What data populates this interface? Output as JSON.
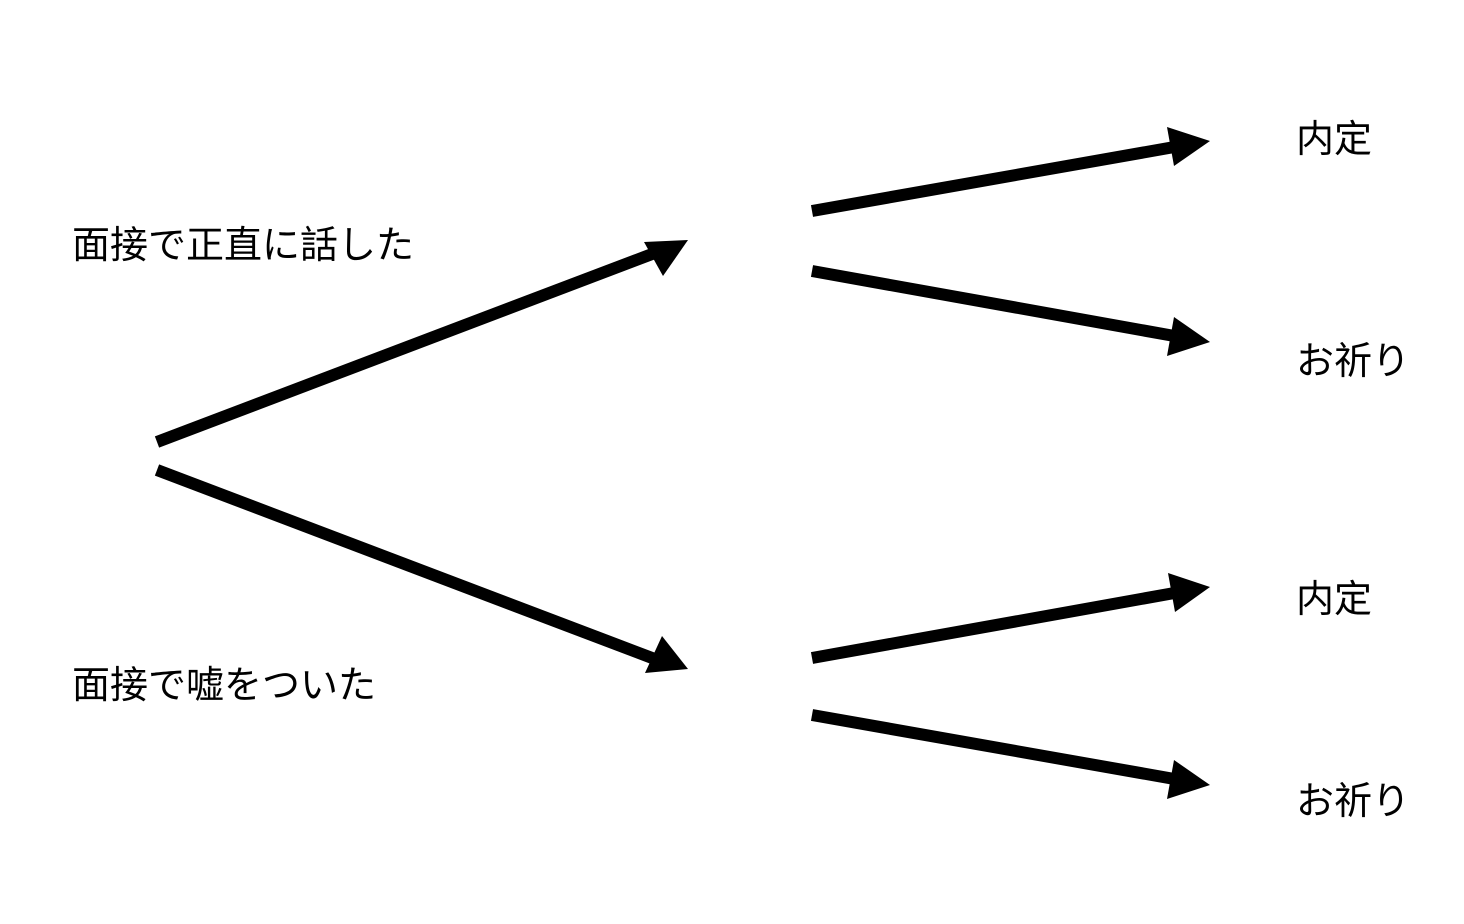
{
  "diagram": {
    "branches": {
      "honest": "面接で正直に話した",
      "lie": "面接で嘘をついた"
    },
    "outcomes": {
      "honest_offer": "内定",
      "honest_reject": "お祈り",
      "lie_offer": "内定",
      "lie_reject": "お祈り"
    },
    "colors": {
      "arrow": "#000000",
      "text": "#000000",
      "background": "#ffffff"
    }
  }
}
